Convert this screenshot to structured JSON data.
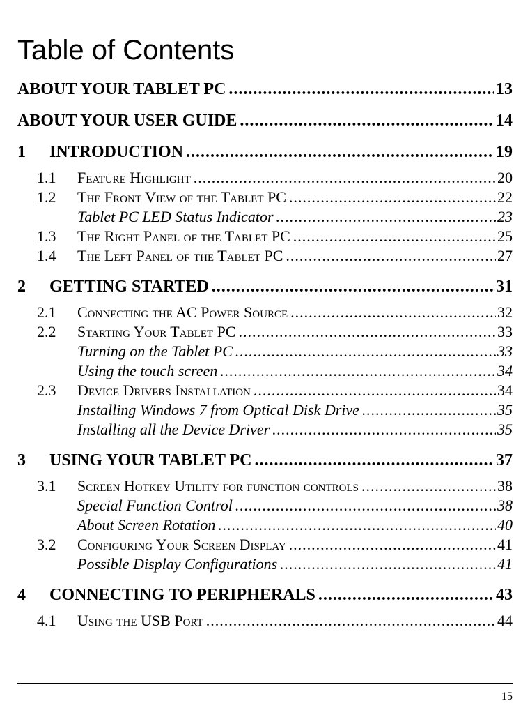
{
  "title": "Table of Contents",
  "page_number": "15",
  "entries": [
    {
      "level": "h1",
      "num": "",
      "label": "ABOUT YOUR TABLET PC",
      "page": "13",
      "style": "bold"
    },
    {
      "level": "h1",
      "num": "",
      "label": "ABOUT YOUR USER GUIDE",
      "page": "14",
      "style": "bold"
    },
    {
      "level": "h1",
      "num": "1",
      "label": "INTRODUCTION",
      "page": "19",
      "style": "bold"
    },
    {
      "level": "h2",
      "num": "1.1",
      "label": "Feature Highlight",
      "page": "20",
      "style": "sc"
    },
    {
      "level": "h2",
      "num": "1.2",
      "label": "The Front View of the Tablet PC",
      "page": "22",
      "style": "sc"
    },
    {
      "level": "h3",
      "num": "",
      "label": "Tablet PC LED Status Indicator",
      "page": "23",
      "style": "ital"
    },
    {
      "level": "h2",
      "num": "1.3",
      "label": "The Right Panel of the Tablet PC",
      "page": "25",
      "style": "sc"
    },
    {
      "level": "h2",
      "num": "1.4",
      "label": "The Left Panel of the Tablet PC",
      "page": "27",
      "style": "sc"
    },
    {
      "level": "h1",
      "num": "2",
      "label": "GETTING STARTED",
      "page": "31",
      "style": "bold"
    },
    {
      "level": "h2",
      "num": "2.1",
      "label": "Connecting the AC Power Source",
      "page": "32",
      "style": "sc"
    },
    {
      "level": "h2",
      "num": "2.2",
      "label": "Starting Your Tablet PC",
      "page": "33",
      "style": "sc"
    },
    {
      "level": "h3",
      "num": "",
      "label": "Turning on the Tablet PC",
      "page": "33",
      "style": "ital"
    },
    {
      "level": "h3",
      "num": "",
      "label": "Using the touch screen",
      "page": "34",
      "style": "ital"
    },
    {
      "level": "h2",
      "num": "2.3",
      "label": "Device Drivers Installation",
      "page": "34",
      "style": "sc"
    },
    {
      "level": "h3",
      "num": "",
      "label": "Installing Windows 7 from Optical Disk Drive",
      "page": "35",
      "style": "ital"
    },
    {
      "level": "h3",
      "num": "",
      "label": "Installing all the Device Driver",
      "page": "35",
      "style": "ital"
    },
    {
      "level": "h1",
      "num": "3",
      "label": "USING YOUR TABLET PC",
      "page": "37",
      "style": "bold"
    },
    {
      "level": "h2",
      "num": "3.1",
      "label": "Screen Hotkey Utility for function controls",
      "page": "38",
      "style": "sc"
    },
    {
      "level": "h3",
      "num": "",
      "label": "Special Function Control",
      "page": "38",
      "style": "ital"
    },
    {
      "level": "h3",
      "num": "",
      "label": "About Screen Rotation",
      "page": "40",
      "style": "ital"
    },
    {
      "level": "h2",
      "num": "3.2",
      "label": "Configuring Your Screen Display",
      "page": "41",
      "style": "sc"
    },
    {
      "level": "h3",
      "num": "",
      "label": "Possible Display Configurations",
      "page": "41",
      "style": "ital"
    },
    {
      "level": "h1",
      "num": "4",
      "label": "CONNECTING TO PERIPHERALS",
      "page": "43",
      "style": "bold"
    },
    {
      "level": "h2",
      "num": "4.1",
      "label": "Using the USB Port",
      "page": "44",
      "style": "sc"
    }
  ]
}
